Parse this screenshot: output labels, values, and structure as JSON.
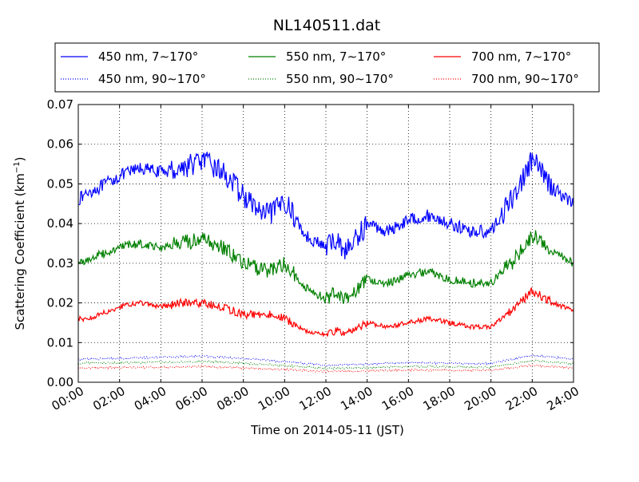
{
  "chart_data": {
    "type": "line",
    "title": "NL140511.dat",
    "xlabel": "Time on 2014-05-11 (JST)",
    "ylabel_main": "Scattering Coefficient (km",
    "ylabel_sup": "−1",
    "ylabel_end": ")",
    "xlim": [
      0,
      24
    ],
    "ylim": [
      0,
      0.07
    ],
    "x_ticks": [
      0,
      2,
      4,
      6,
      8,
      10,
      12,
      14,
      16,
      18,
      20,
      22,
      24
    ],
    "x_tick_labels": [
      "00:00",
      "02:00",
      "04:00",
      "06:00",
      "08:00",
      "10:00",
      "12:00",
      "14:00",
      "16:00",
      "18:00",
      "20:00",
      "22:00",
      "24:00"
    ],
    "y_ticks": [
      0,
      0.01,
      0.02,
      0.03,
      0.04,
      0.05,
      0.06,
      0.07
    ],
    "y_tick_labels": [
      "0.00",
      "0.01",
      "0.02",
      "0.03",
      "0.04",
      "0.05",
      "0.06",
      "0.07"
    ],
    "grid": true,
    "legend_position": "top, above plot, 3 columns",
    "series": [
      {
        "name": "450 nm, 7∼170°",
        "color": "#0000ff",
        "style": "solid",
        "x": [
          0,
          0.5,
          1,
          2,
          3,
          4,
          5,
          6,
          7,
          8,
          9,
          9.5,
          10,
          11,
          12,
          12.5,
          13,
          14,
          15,
          16,
          17,
          18,
          19,
          20,
          21,
          22,
          23,
          24
        ],
        "y": [
          0.046,
          0.048,
          0.049,
          0.052,
          0.054,
          0.053,
          0.054,
          0.056,
          0.053,
          0.047,
          0.042,
          0.043,
          0.046,
          0.037,
          0.034,
          0.036,
          0.033,
          0.04,
          0.038,
          0.041,
          0.042,
          0.04,
          0.038,
          0.038,
          0.046,
          0.056,
          0.049,
          0.045
        ]
      },
      {
        "name": "550 nm, 7∼170°",
        "color": "#008000",
        "style": "solid",
        "x": [
          0,
          0.5,
          1,
          2,
          3,
          4,
          5,
          6,
          7,
          8,
          9,
          9.5,
          10,
          11,
          12,
          12.5,
          13,
          14,
          15,
          16,
          17,
          18,
          19,
          20,
          21,
          22,
          23,
          24
        ],
        "y": [
          0.03,
          0.031,
          0.032,
          0.034,
          0.035,
          0.034,
          0.035,
          0.036,
          0.034,
          0.03,
          0.028,
          0.029,
          0.03,
          0.024,
          0.021,
          0.023,
          0.021,
          0.026,
          0.025,
          0.027,
          0.028,
          0.026,
          0.025,
          0.025,
          0.03,
          0.037,
          0.033,
          0.03
        ]
      },
      {
        "name": "700 nm, 7∼170°",
        "color": "#ff0000",
        "style": "solid",
        "x": [
          0,
          0.5,
          1,
          2,
          3,
          4,
          5,
          6,
          7,
          8,
          9,
          9.5,
          10,
          11,
          12,
          12.5,
          13,
          14,
          15,
          16,
          17,
          18,
          19,
          20,
          21,
          22,
          23,
          24
        ],
        "y": [
          0.016,
          0.016,
          0.017,
          0.019,
          0.02,
          0.019,
          0.02,
          0.02,
          0.019,
          0.017,
          0.017,
          0.017,
          0.016,
          0.013,
          0.012,
          0.013,
          0.012,
          0.015,
          0.014,
          0.015,
          0.016,
          0.015,
          0.014,
          0.014,
          0.018,
          0.023,
          0.02,
          0.018
        ]
      },
      {
        "name": "450 nm, 90∼170°",
        "color": "#0000ff",
        "style": "dotted",
        "x": [
          0,
          2,
          4,
          6,
          8,
          10,
          12,
          14,
          16,
          18,
          20,
          22,
          24
        ],
        "y": [
          0.0058,
          0.006,
          0.0063,
          0.0066,
          0.006,
          0.0052,
          0.0043,
          0.0046,
          0.005,
          0.0048,
          0.0047,
          0.0068,
          0.0058
        ]
      },
      {
        "name": "550 nm, 90∼170°",
        "color": "#008000",
        "style": "dotted",
        "x": [
          0,
          2,
          4,
          6,
          8,
          10,
          12,
          14,
          16,
          18,
          20,
          22,
          24
        ],
        "y": [
          0.0048,
          0.0049,
          0.005,
          0.0053,
          0.0048,
          0.0042,
          0.0035,
          0.0037,
          0.004,
          0.0039,
          0.0038,
          0.0055,
          0.0046
        ]
      },
      {
        "name": "700 nm, 90∼170°",
        "color": "#ff0000",
        "style": "dotted",
        "x": [
          0,
          2,
          4,
          6,
          8,
          10,
          12,
          14,
          16,
          18,
          20,
          22,
          24
        ],
        "y": [
          0.0036,
          0.0037,
          0.0038,
          0.004,
          0.0036,
          0.0032,
          0.0027,
          0.0029,
          0.0031,
          0.003,
          0.003,
          0.0043,
          0.0036
        ]
      }
    ]
  }
}
